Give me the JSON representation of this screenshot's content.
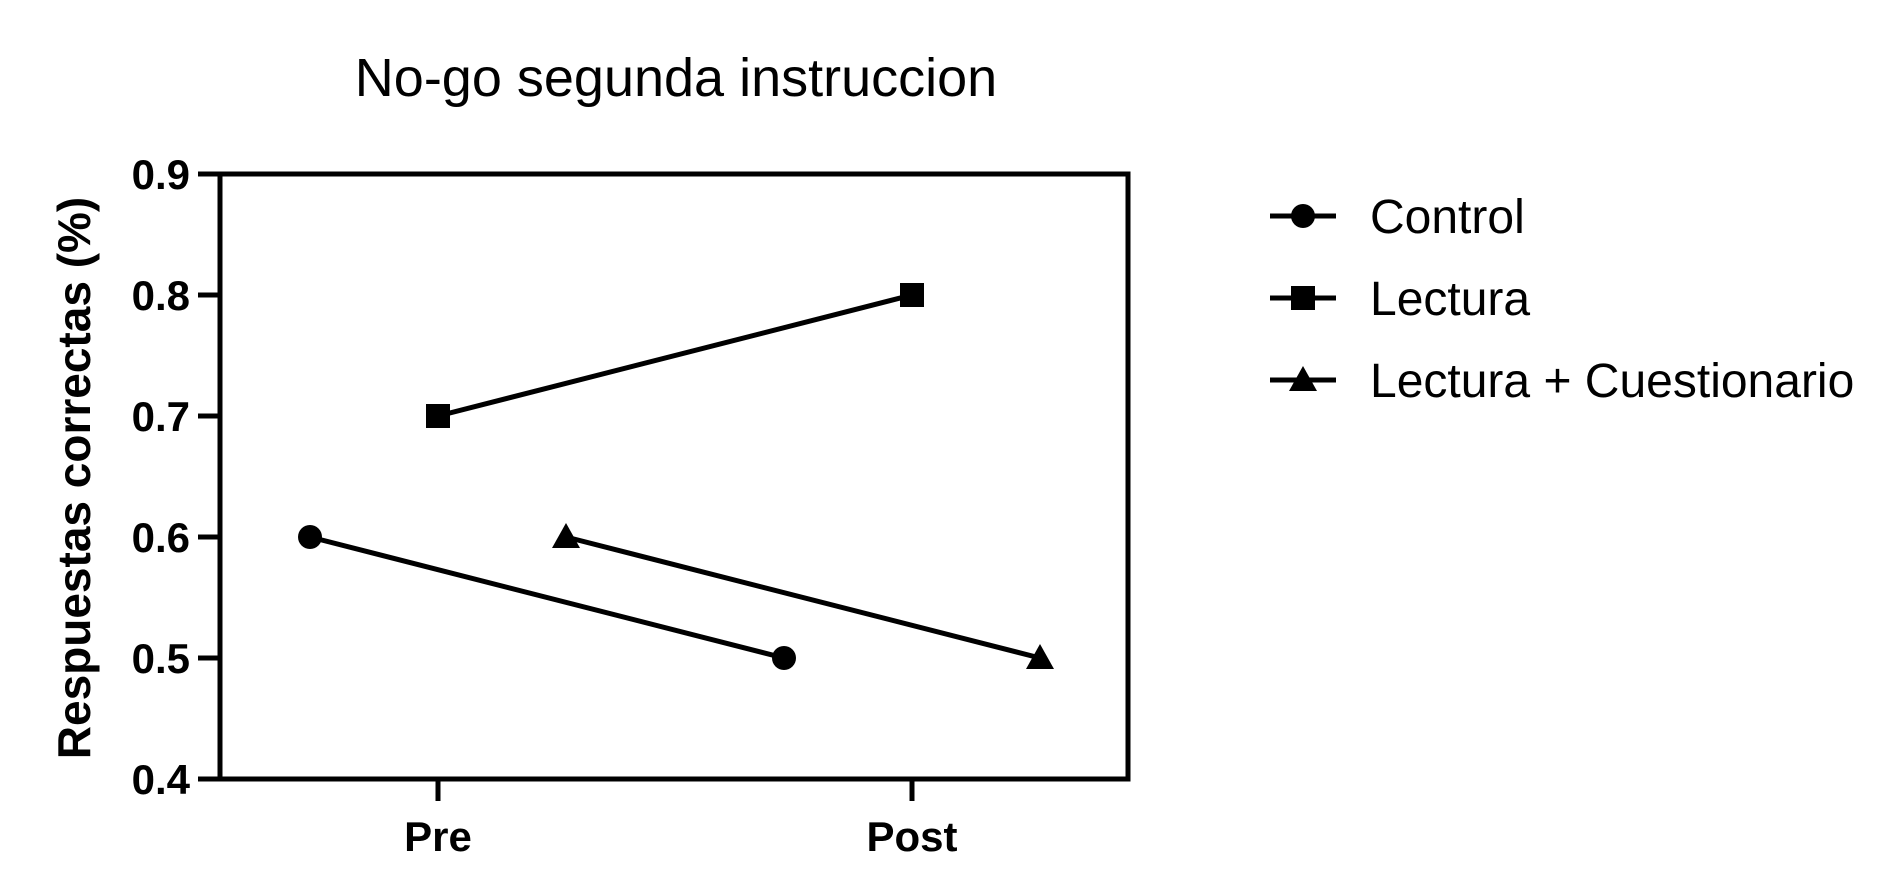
{
  "chart_data": {
    "type": "line",
    "title": "No-go segunda instruccion",
    "xlabel": "",
    "ylabel": "Respuestas correctas (%)",
    "categories": [
      "Pre",
      "Post"
    ],
    "ylim": [
      0.4,
      0.9
    ],
    "yticks": [
      "0.4",
      "0.5",
      "0.6",
      "0.7",
      "0.8",
      "0.9"
    ],
    "grid": false,
    "legend": "right",
    "series": [
      {
        "name": "Control",
        "marker": "circle",
        "values": [
          0.6,
          0.5
        ]
      },
      {
        "name": "Lectura",
        "marker": "square",
        "values": [
          0.7,
          0.8
        ]
      },
      {
        "name": "Lectura + Cuestionario",
        "marker": "triangle",
        "values": [
          0.6,
          0.5
        ]
      }
    ],
    "color": "#000000"
  }
}
